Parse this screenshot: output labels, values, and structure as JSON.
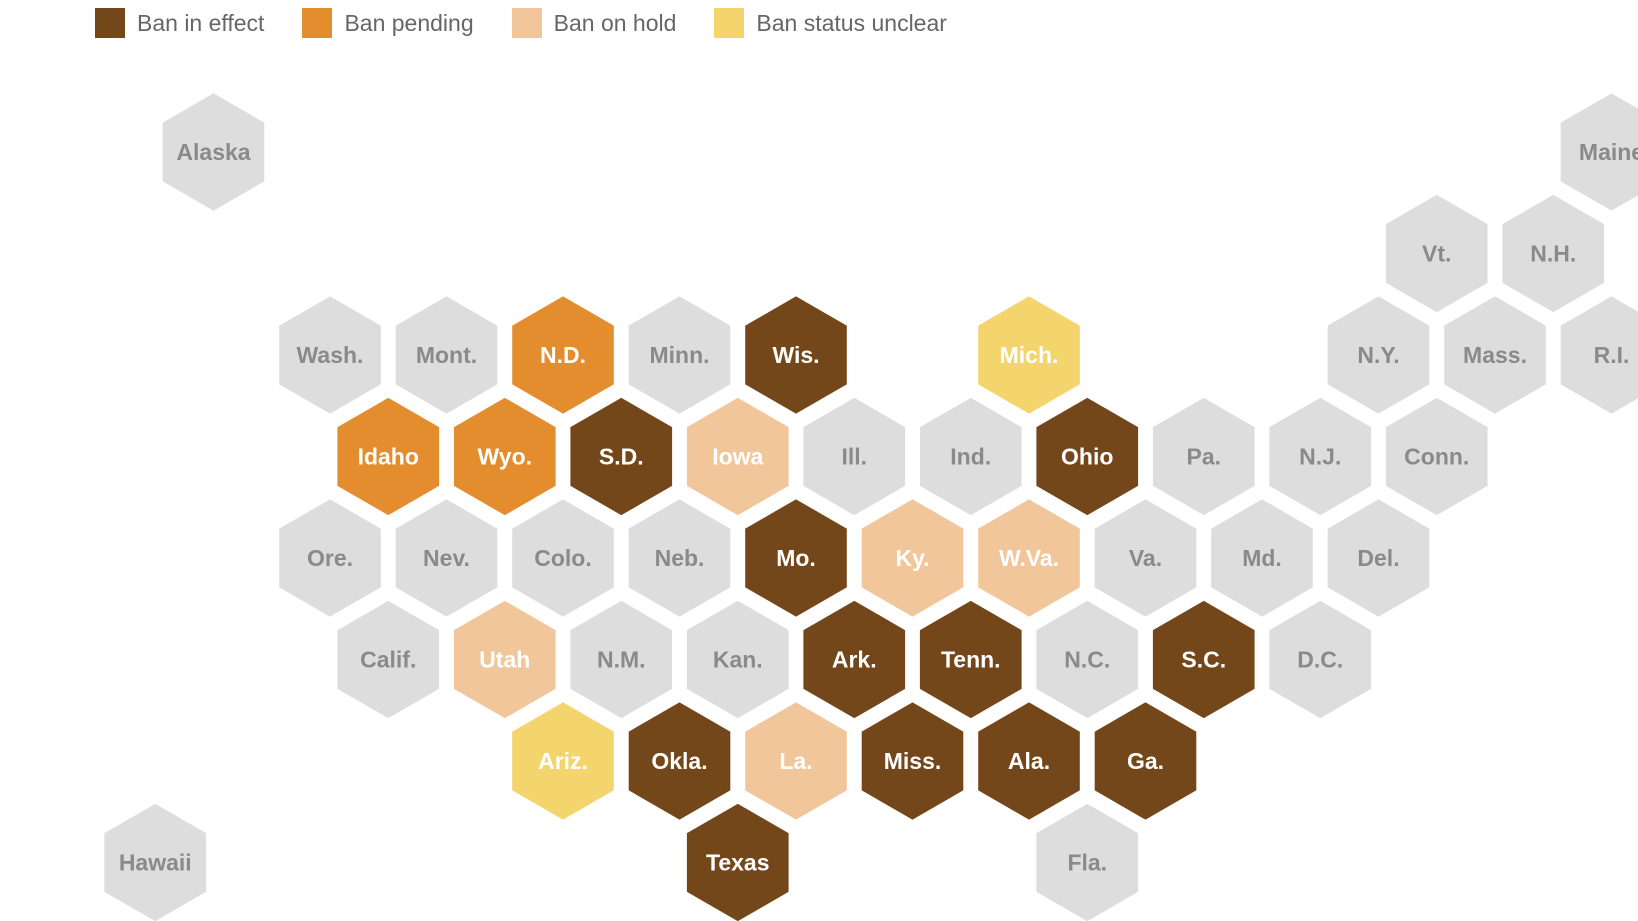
{
  "legend": [
    {
      "key": "effect",
      "label": "Ban in effect",
      "color": "#734719"
    },
    {
      "key": "pending",
      "label": "Ban pending",
      "color": "#e38d2f"
    },
    {
      "key": "hold",
      "label": "Ban on hold",
      "color": "#f1c69b"
    },
    {
      "key": "unclear",
      "label": "Ban status unclear",
      "color": "#f3d46d"
    }
  ],
  "colors": {
    "none": "#dddddd",
    "none_text": "#8a8a8a",
    "status_text": "#ffffff"
  },
  "states": [
    {
      "name": "Alaska",
      "row": 0,
      "col": 1,
      "status": "none"
    },
    {
      "name": "Maine",
      "row": 0,
      "col": 13,
      "status": "none"
    },
    {
      "name": "Vt.",
      "row": 1,
      "col": 11,
      "status": "none"
    },
    {
      "name": "N.H.",
      "row": 1,
      "col": 12,
      "status": "none"
    },
    {
      "name": "Wash.",
      "row": 2,
      "col": 2,
      "status": "none"
    },
    {
      "name": "Mont.",
      "row": 2,
      "col": 3,
      "status": "none"
    },
    {
      "name": "N.D.",
      "row": 2,
      "col": 4,
      "status": "pending"
    },
    {
      "name": "Minn.",
      "row": 2,
      "col": 5,
      "status": "none"
    },
    {
      "name": "Wis.",
      "row": 2,
      "col": 6,
      "status": "effect"
    },
    {
      "name": "Mich.",
      "row": 2,
      "col": 8,
      "status": "unclear"
    },
    {
      "name": "N.Y.",
      "row": 2,
      "col": 11,
      "status": "none"
    },
    {
      "name": "Mass.",
      "row": 2,
      "col": 12,
      "status": "none"
    },
    {
      "name": "R.I.",
      "row": 2,
      "col": 13,
      "status": "none"
    },
    {
      "name": "Idaho",
      "row": 3,
      "col": 2,
      "status": "pending"
    },
    {
      "name": "Wyo.",
      "row": 3,
      "col": 3,
      "status": "pending"
    },
    {
      "name": "S.D.",
      "row": 3,
      "col": 4,
      "status": "effect"
    },
    {
      "name": "Iowa",
      "row": 3,
      "col": 5,
      "status": "hold"
    },
    {
      "name": "Ill.",
      "row": 3,
      "col": 6,
      "status": "none"
    },
    {
      "name": "Ind.",
      "row": 3,
      "col": 7,
      "status": "none"
    },
    {
      "name": "Ohio",
      "row": 3,
      "col": 8,
      "status": "effect"
    },
    {
      "name": "Pa.",
      "row": 3,
      "col": 9,
      "status": "none"
    },
    {
      "name": "N.J.",
      "row": 3,
      "col": 10,
      "status": "none"
    },
    {
      "name": "Conn.",
      "row": 3,
      "col": 11,
      "status": "none"
    },
    {
      "name": "Ore.",
      "row": 4,
      "col": 2,
      "status": "none"
    },
    {
      "name": "Nev.",
      "row": 4,
      "col": 3,
      "status": "none"
    },
    {
      "name": "Colo.",
      "row": 4,
      "col": 4,
      "status": "none"
    },
    {
      "name": "Neb.",
      "row": 4,
      "col": 5,
      "status": "none"
    },
    {
      "name": "Mo.",
      "row": 4,
      "col": 6,
      "status": "effect"
    },
    {
      "name": "Ky.",
      "row": 4,
      "col": 7,
      "status": "hold"
    },
    {
      "name": "W.Va.",
      "row": 4,
      "col": 8,
      "status": "hold"
    },
    {
      "name": "Va.",
      "row": 4,
      "col": 9,
      "status": "none"
    },
    {
      "name": "Md.",
      "row": 4,
      "col": 10,
      "status": "none"
    },
    {
      "name": "Del.",
      "row": 4,
      "col": 11,
      "status": "none"
    },
    {
      "name": "Calif.",
      "row": 5,
      "col": 2,
      "status": "none"
    },
    {
      "name": "Utah",
      "row": 5,
      "col": 3,
      "status": "hold"
    },
    {
      "name": "N.M.",
      "row": 5,
      "col": 4,
      "status": "none"
    },
    {
      "name": "Kan.",
      "row": 5,
      "col": 5,
      "status": "none"
    },
    {
      "name": "Ark.",
      "row": 5,
      "col": 6,
      "status": "effect"
    },
    {
      "name": "Tenn.",
      "row": 5,
      "col": 7,
      "status": "effect"
    },
    {
      "name": "N.C.",
      "row": 5,
      "col": 8,
      "status": "none"
    },
    {
      "name": "S.C.",
      "row": 5,
      "col": 9,
      "status": "effect"
    },
    {
      "name": "D.C.",
      "row": 5,
      "col": 10,
      "status": "none"
    },
    {
      "name": "Ariz.",
      "row": 6,
      "col": 4,
      "status": "unclear"
    },
    {
      "name": "Okla.",
      "row": 6,
      "col": 5,
      "status": "effect"
    },
    {
      "name": "La.",
      "row": 6,
      "col": 6,
      "status": "hold"
    },
    {
      "name": "Miss.",
      "row": 6,
      "col": 7,
      "status": "effect"
    },
    {
      "name": "Ala.",
      "row": 6,
      "col": 8,
      "status": "effect"
    },
    {
      "name": "Ga.",
      "row": 6,
      "col": 9,
      "status": "effect"
    },
    {
      "name": "Hawaii",
      "row": 7,
      "col": 0,
      "status": "none"
    },
    {
      "name": "Texas",
      "row": 7,
      "col": 5,
      "status": "effect"
    },
    {
      "name": "Fla.",
      "row": 7,
      "col": 8,
      "status": "none"
    }
  ]
}
